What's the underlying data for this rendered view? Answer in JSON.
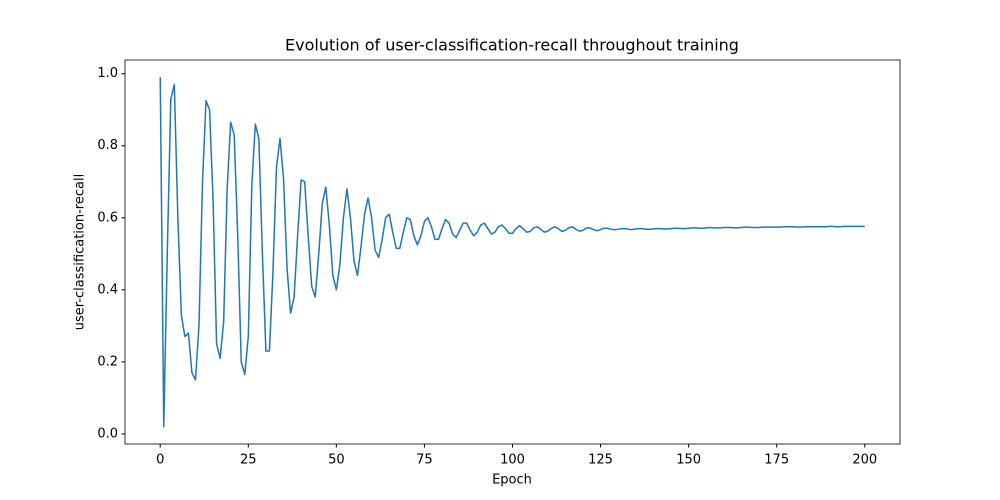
{
  "chart_data": {
    "type": "line",
    "title": "Evolution of user-classification-recall throughout training",
    "xlabel": "Epoch",
    "ylabel": "user-classification-recall",
    "x": [
      0,
      1,
      2,
      3,
      4,
      5,
      6,
      7,
      8,
      9,
      10,
      11,
      12,
      13,
      14,
      15,
      16,
      17,
      18,
      19,
      20,
      21,
      22,
      23,
      24,
      25,
      26,
      27,
      28,
      29,
      30,
      31,
      32,
      33,
      34,
      35,
      36,
      37,
      38,
      39,
      40,
      41,
      42,
      43,
      44,
      45,
      46,
      47,
      48,
      49,
      50,
      51,
      52,
      53,
      54,
      55,
      56,
      57,
      58,
      59,
      60,
      61,
      62,
      63,
      64,
      65,
      66,
      67,
      68,
      69,
      70,
      71,
      72,
      73,
      74,
      75,
      76,
      77,
      78,
      79,
      80,
      81,
      82,
      83,
      84,
      85,
      86,
      87,
      88,
      89,
      90,
      91,
      92,
      93,
      94,
      95,
      96,
      97,
      98,
      99,
      100,
      101,
      102,
      103,
      104,
      105,
      106,
      107,
      108,
      109,
      110,
      111,
      112,
      113,
      114,
      115,
      116,
      117,
      118,
      119,
      120,
      121,
      122,
      123,
      124,
      125,
      126,
      127,
      128,
      129,
      130,
      131,
      132,
      133,
      134,
      135,
      136,
      137,
      138,
      139,
      140,
      141,
      142,
      143,
      144,
      145,
      146,
      147,
      148,
      149,
      150,
      151,
      152,
      153,
      154,
      155,
      156,
      157,
      158,
      159,
      160,
      161,
      162,
      163,
      164,
      165,
      166,
      167,
      168,
      169,
      170,
      171,
      172,
      173,
      174,
      175,
      176,
      177,
      178,
      179,
      180,
      181,
      182,
      183,
      184,
      185,
      186,
      187,
      188,
      189,
      190,
      191,
      192,
      193,
      194,
      195,
      196,
      197,
      198,
      199,
      200
    ],
    "series": [
      {
        "name": "user-classification-recall",
        "color": "#1f77b4",
        "values": [
          0.99,
          0.02,
          0.5,
          0.93,
          0.97,
          0.6,
          0.33,
          0.27,
          0.28,
          0.17,
          0.15,
          0.3,
          0.7,
          0.925,
          0.9,
          0.65,
          0.25,
          0.21,
          0.31,
          0.68,
          0.865,
          0.83,
          0.55,
          0.2,
          0.165,
          0.27,
          0.69,
          0.86,
          0.82,
          0.5,
          0.23,
          0.23,
          0.45,
          0.74,
          0.82,
          0.71,
          0.46,
          0.335,
          0.38,
          0.55,
          0.705,
          0.7,
          0.55,
          0.41,
          0.38,
          0.5,
          0.64,
          0.685,
          0.58,
          0.44,
          0.4,
          0.47,
          0.6,
          0.68,
          0.6,
          0.48,
          0.44,
          0.52,
          0.61,
          0.655,
          0.6,
          0.51,
          0.49,
          0.54,
          0.6,
          0.61,
          0.56,
          0.515,
          0.515,
          0.56,
          0.6,
          0.595,
          0.55,
          0.525,
          0.55,
          0.59,
          0.6,
          0.575,
          0.54,
          0.54,
          0.57,
          0.595,
          0.585,
          0.555,
          0.545,
          0.565,
          0.585,
          0.585,
          0.565,
          0.55,
          0.56,
          0.58,
          0.585,
          0.57,
          0.555,
          0.56,
          0.575,
          0.58,
          0.57,
          0.557,
          0.557,
          0.57,
          0.578,
          0.57,
          0.56,
          0.562,
          0.572,
          0.575,
          0.568,
          0.56,
          0.563,
          0.57,
          0.575,
          0.57,
          0.562,
          0.565,
          0.572,
          0.575,
          0.568,
          0.563,
          0.565,
          0.572,
          0.572,
          0.567,
          0.564,
          0.567,
          0.571,
          0.571,
          0.568,
          0.567,
          0.568,
          0.57,
          0.57,
          0.568,
          0.567,
          0.569,
          0.57,
          0.57,
          0.568,
          0.568,
          0.569,
          0.57,
          0.57,
          0.569,
          0.569,
          0.57,
          0.571,
          0.571,
          0.57,
          0.57,
          0.571,
          0.572,
          0.572,
          0.571,
          0.571,
          0.572,
          0.573,
          0.572,
          0.572,
          0.572,
          0.573,
          0.573,
          0.573,
          0.572,
          0.572,
          0.573,
          0.574,
          0.574,
          0.573,
          0.573,
          0.573,
          0.574,
          0.574,
          0.574,
          0.574,
          0.574,
          0.574,
          0.575,
          0.575,
          0.575,
          0.575,
          0.574,
          0.574,
          0.575,
          0.575,
          0.575,
          0.575,
          0.575,
          0.575,
          0.575,
          0.576,
          0.576,
          0.575,
          0.575,
          0.576,
          0.576,
          0.576,
          0.576,
          0.576,
          0.576,
          0.576
        ]
      }
    ],
    "xlim": [
      -10,
      210
    ],
    "xticks": [
      0,
      25,
      50,
      75,
      100,
      125,
      150,
      175,
      200
    ],
    "ylim": [
      -0.028,
      1.038
    ],
    "yticks": [
      {
        "value": 0,
        "label": "0.0"
      },
      0.2,
      0.4,
      0.6,
      0.8,
      {
        "value": 1,
        "label": "1.0"
      }
    ],
    "grid": false
  }
}
